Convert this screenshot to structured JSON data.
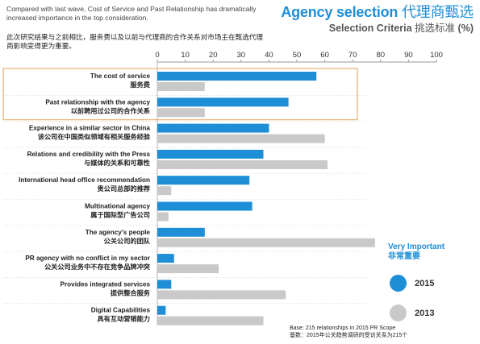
{
  "intro": {
    "english": "Compared with last wave, Cost of Service and Past Relationship has dramatically increased importance in the top consideration.",
    "chinese": "此次研究结果与之前相比，服务费以及以前与代理商的合作关系对市场主在甄选代理商影响变得更为重要。"
  },
  "title": {
    "main_en": "Agency selection",
    "main_zh": "代理商甄选",
    "sub_en": "Selection Criteria",
    "sub_zh": "挑选标准",
    "sub_unit": "(%)"
  },
  "legend": {
    "title_en": "Very Important",
    "title_zh": "非常重要",
    "items": [
      {
        "label": "2015",
        "color": "#1e8fd6"
      },
      {
        "label": "2013",
        "color": "#c9c9c9"
      }
    ]
  },
  "base_note": {
    "line1": "Base: 215 relationships in 2015 PR Scope",
    "line2": "基数：2015年公关趋势调研的受访关系为215个"
  },
  "chart_data": {
    "type": "bar",
    "orientation": "horizontal",
    "xlim": [
      0,
      100
    ],
    "xticks": [
      0,
      10,
      20,
      30,
      40,
      50,
      60,
      70,
      80,
      90,
      100
    ],
    "highlight_rows": [
      0,
      1
    ],
    "highlight_color": "#e8b77c",
    "categories": [
      {
        "en": "The cost of service",
        "zh": "服务费"
      },
      {
        "en": "Past relationship with the agency",
        "zh": "以前聘用过公司的合作关系"
      },
      {
        "en": "Experience in a similar sector in China",
        "zh": "该公司在中国类似领域有相关服务经验"
      },
      {
        "en": "Relations and credibility with the Press",
        "zh": "与媒体的关系和可靠性"
      },
      {
        "en": "International head office recommendation",
        "zh": "贵公司总部的推荐"
      },
      {
        "en": "Multinational agency",
        "zh": "属于国际型广告公司"
      },
      {
        "en": "The agency's people",
        "zh": "公关公司的团队"
      },
      {
        "en": "PR agency with no conflict in my sector",
        "zh": "公关公司业务中不存在竞争品牌冲突"
      },
      {
        "en": "Provides integrated services",
        "zh": "提供整合服务"
      },
      {
        "en": "Digital Capabilities",
        "zh": "具有互动营销能力"
      }
    ],
    "series": [
      {
        "name": "2015",
        "color": "#1e8fd6",
        "values": [
          57,
          47,
          40,
          38,
          33,
          34,
          17,
          6,
          5,
          3
        ]
      },
      {
        "name": "2013",
        "color": "#c9c9c9",
        "values": [
          17,
          17,
          60,
          61,
          5,
          4,
          78,
          22,
          46,
          38
        ]
      }
    ]
  }
}
